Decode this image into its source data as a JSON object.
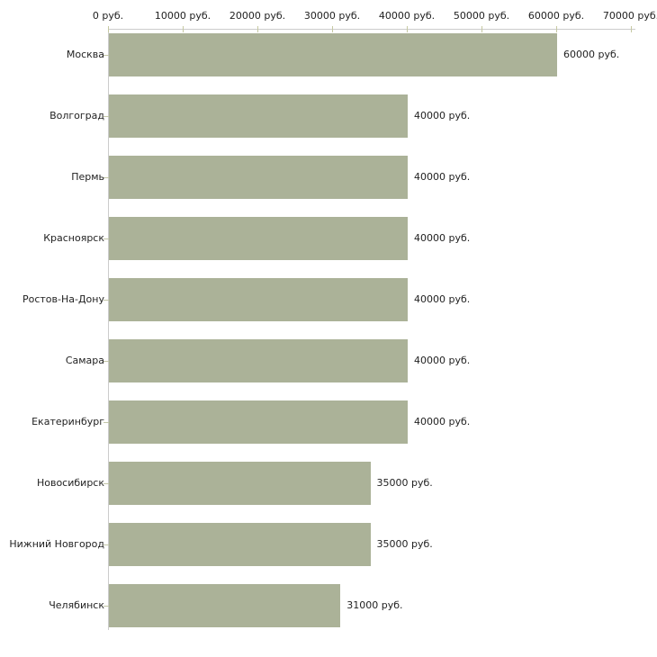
{
  "chart_data": {
    "type": "bar",
    "orientation": "horizontal",
    "title": "",
    "categories": [
      "Москва",
      "Волгоград",
      "Пермь",
      "Красноярск",
      "Ростов-На-Дону",
      "Самара",
      "Екатеринбург",
      "Новосибирск",
      "Нижний Новгород",
      "Челябинск"
    ],
    "values": [
      60000,
      40000,
      40000,
      40000,
      40000,
      40000,
      40000,
      35000,
      35000,
      31000
    ],
    "value_labels": [
      "60000 руб.",
      "40000 руб.",
      "40000 руб.",
      "40000 руб.",
      "40000 руб.",
      "40000 руб.",
      "40000 руб.",
      "35000 руб.",
      "35000 руб.",
      "31000 руб."
    ],
    "x_axis": {
      "position": "top",
      "range": [
        0,
        70000
      ],
      "ticks": [
        0,
        10000,
        20000,
        30000,
        40000,
        50000,
        60000,
        70000
      ],
      "tick_labels": [
        "0 руб.",
        "10000 руб.",
        "20000 руб.",
        "30000 руб.",
        "40000 руб.",
        "50000 руб.",
        "60000 руб.",
        "70000 руб."
      ]
    },
    "legend": "none",
    "grid": "off",
    "colors": {
      "bar": "#abb298",
      "axis_line": "#cccccc",
      "tick": "#c6c9a2",
      "text": "#222222",
      "background": "#ffffff"
    }
  }
}
